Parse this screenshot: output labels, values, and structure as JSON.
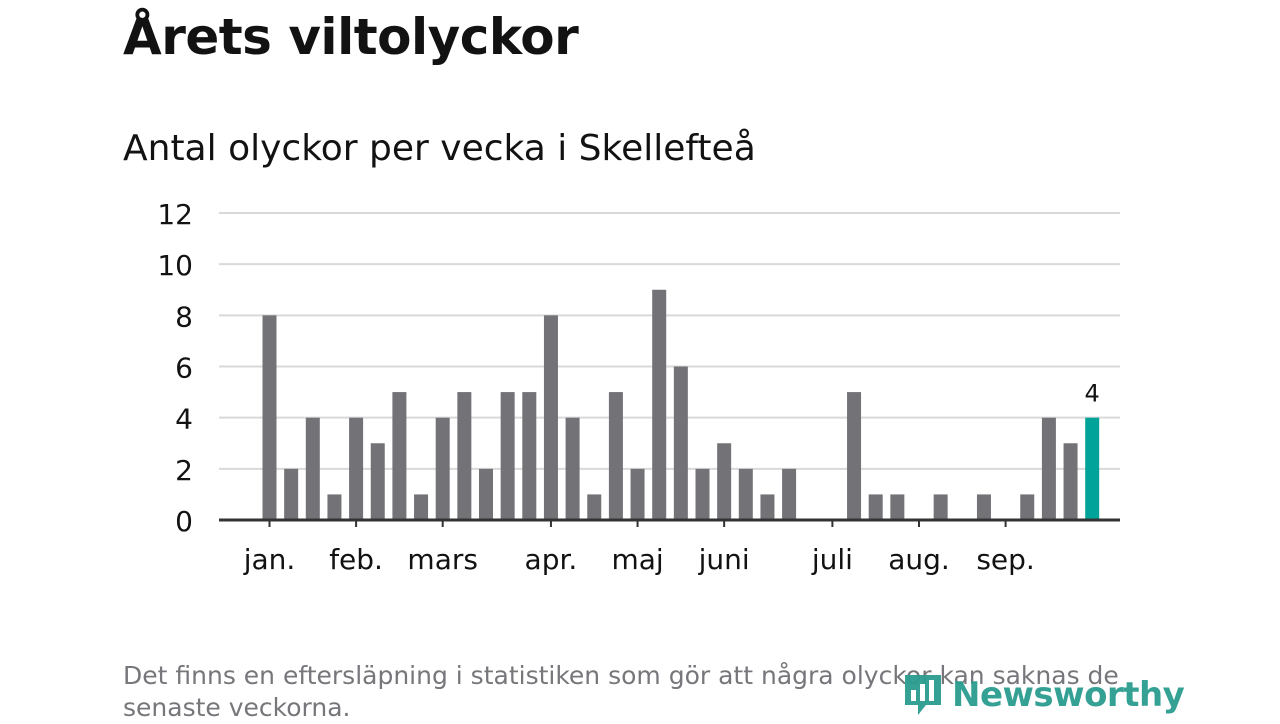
{
  "header": {
    "title": "Årets viltolyckor",
    "subtitle": "Antal olyckor per vecka i Skellefteå"
  },
  "footer": {
    "note": "Det finns en eftersläpning i statistiken som gör att några olyckor kan saknas de senaste veckorna.",
    "brand": "Newsworthy"
  },
  "colors": {
    "bar": "#737277",
    "highlight": "#00a39a",
    "grid": "#d9d9d9",
    "axis": "#333333",
    "text": "#121212",
    "note": "#77767b",
    "brand": "#2a9d8f"
  },
  "chart_data": {
    "type": "bar",
    "title": "Antal olyckor per vecka i Skellefteå",
    "xlabel": "",
    "ylabel": "",
    "ylim": [
      0,
      12
    ],
    "yticks": [
      0,
      2,
      4,
      6,
      8,
      10,
      12
    ],
    "grid": true,
    "values": [
      8,
      2,
      4,
      1,
      4,
      3,
      5,
      1,
      4,
      5,
      2,
      5,
      5,
      8,
      4,
      1,
      5,
      2,
      9,
      6,
      2,
      3,
      2,
      1,
      2,
      0,
      0,
      5,
      1,
      1,
      0,
      1,
      0,
      1,
      0,
      1,
      4,
      3,
      4
    ],
    "highlight_index": 38,
    "highlight_label": "4",
    "month_labels": [
      {
        "label": "jan.",
        "week_index": 0
      },
      {
        "label": "feb.",
        "week_index": 4
      },
      {
        "label": "mars",
        "week_index": 8
      },
      {
        "label": "apr.",
        "week_index": 13
      },
      {
        "label": "maj",
        "week_index": 17
      },
      {
        "label": "juni",
        "week_index": 21
      },
      {
        "label": "juli",
        "week_index": 26
      },
      {
        "label": "aug.",
        "week_index": 30
      },
      {
        "label": "sep.",
        "week_index": 34
      }
    ]
  }
}
